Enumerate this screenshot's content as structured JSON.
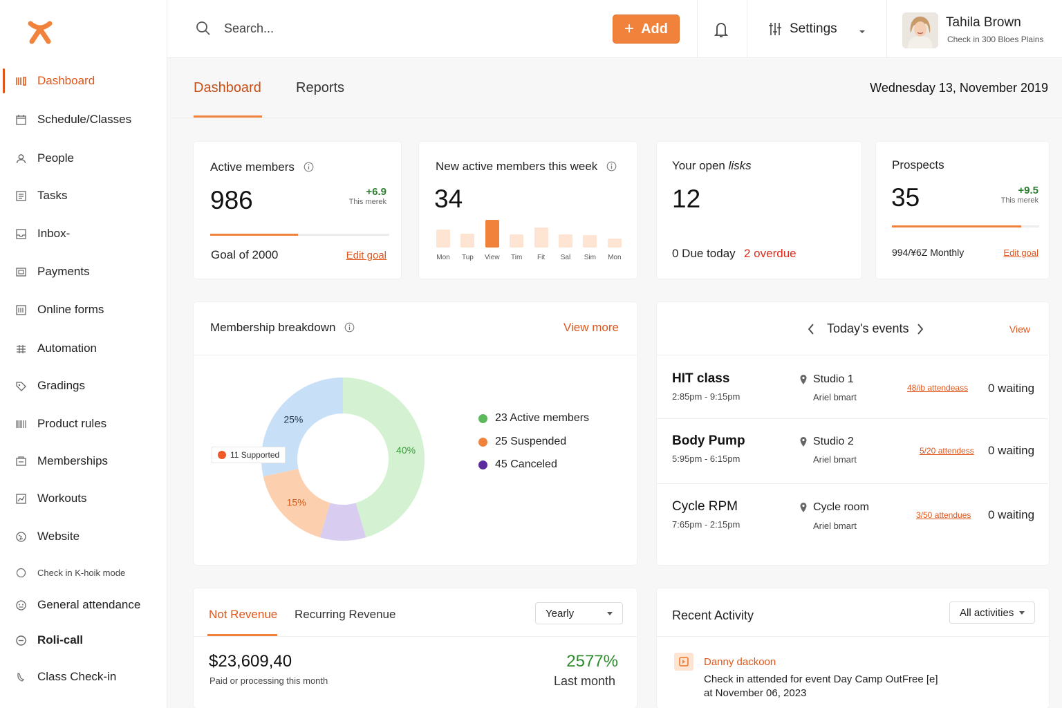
{
  "app": {
    "accent": "#f0823b"
  },
  "sidebar": {
    "items": [
      {
        "label": "Dashboard",
        "icon": "dashboard-icon"
      },
      {
        "label": "Schedule/Classes",
        "icon": "calendar-icon"
      },
      {
        "label": "People",
        "icon": "person-icon"
      },
      {
        "label": "Tasks",
        "icon": "tasks-icon"
      },
      {
        "label": "Inbox-",
        "icon": "inbox-icon"
      },
      {
        "label": "Payments",
        "icon": "payments-icon"
      },
      {
        "label": "Online forms",
        "icon": "forms-icon"
      },
      {
        "label": "Automation",
        "icon": "automation-icon"
      },
      {
        "label": "Gradings",
        "icon": "tag-icon"
      },
      {
        "label": "Product rules",
        "icon": "barcode-icon"
      },
      {
        "label": "Memberships",
        "icon": "memberships-icon"
      },
      {
        "label": "Workouts",
        "icon": "workouts-icon"
      },
      {
        "label": "Website",
        "icon": "globe-icon"
      },
      {
        "label": "Check in K-hoik mode",
        "icon": "kiosk-icon"
      },
      {
        "label": "General attendance",
        "icon": "attendance-icon"
      },
      {
        "label": "Roli-call",
        "icon": "rollcall-icon"
      },
      {
        "label": "Class Check-in",
        "icon": "checkin-icon"
      }
    ]
  },
  "header": {
    "search_placeholder": "Search...",
    "add_label": "Add",
    "settings_label": "Settings",
    "user_name": "Tahila Brown",
    "user_sub": "Check in 300 Bloes Plains"
  },
  "tabs": {
    "dashboard": "Dashboard",
    "reports": "Reports"
  },
  "date": "Wednesday 13, November 2019",
  "stats": {
    "active": {
      "title": "Active members",
      "value": "986",
      "delta": "+6.9",
      "delta_label": "This merek",
      "goal": "Goal of 2000",
      "edit": "Edit goal",
      "progress": 0.49
    },
    "new_week": {
      "title": "New active members this week",
      "value": "34",
      "days": [
        "Mon",
        "Tup",
        "View",
        "Tim",
        "Fit",
        "Sal",
        "Sim",
        "Mon"
      ],
      "levels": [
        0.62,
        0.48,
        0.95,
        0.46,
        0.7,
        0.46,
        0.44,
        0.3
      ],
      "highlight_index": 2
    },
    "tasks": {
      "title_prefix": "Your open ",
      "title_em": "lisks",
      "value": "12",
      "due": "0 Due today",
      "overdue": "2 overdue"
    },
    "prospects": {
      "title": "Prospects",
      "value": "35",
      "delta": "+9.5",
      "delta_label": "This merek",
      "monthly": "994/¥6Z Monthly",
      "edit": "Edit goal",
      "progress": 0.88
    }
  },
  "breakdown": {
    "title": "Membership breakdown",
    "view_more": "View more",
    "callout": "11 Supported",
    "segments": [
      {
        "label": "40%",
        "percent": 40,
        "color": "#d4f2d2",
        "text_color": "#3a9a3a"
      },
      {
        "label": "",
        "percent": 8,
        "color": "#d8ccf0",
        "text_color": "#555"
      },
      {
        "label": "15%",
        "percent": 15,
        "color": "#fccfae",
        "text_color": "#d35a18"
      },
      {
        "label": "25%",
        "percent": 25,
        "color": "#c7e0f8",
        "text_color": "#234"
      }
    ],
    "legend": [
      {
        "label": "23 Active members",
        "color": "#5cb85c"
      },
      {
        "label": "25 Suspended",
        "color": "#f0823b"
      },
      {
        "label": "45 Canceled",
        "color": "#5b2a9e"
      }
    ]
  },
  "events": {
    "title": "Today's events",
    "view": "View",
    "items": [
      {
        "name": "HIT class",
        "time": "2:85pm - 9:15pm",
        "location": "Studio 1",
        "instructor": "Ariel bmart",
        "attendees": "48/ib attendeass",
        "waiting": "0 waiting"
      },
      {
        "name": "Body Pump",
        "time": "5:95pm - 6:15pm",
        "location": "Studio 2",
        "instructor": "Ariel bmart",
        "attendees": "5/20 attendess",
        "waiting": "0 waiting"
      },
      {
        "name": "Cycle RPM",
        "time": "7:65pm - 2:15pm",
        "location": "Cycle room",
        "instructor": "Ariel bmart",
        "attendees": "3/50 attendues",
        "waiting": "0 waiting"
      }
    ]
  },
  "revenue": {
    "tab_net": "Not Revenue",
    "tab_recurring": "Recurring Revenue",
    "period": "Yearly",
    "amount": "$23,609,40",
    "amount_sub": "Paid or processing this month",
    "change": "2577%",
    "change_label": "Last month"
  },
  "activity": {
    "title": "Recent Activity",
    "filter": "All activities",
    "items": [
      {
        "name": "Danny dackoon",
        "text": "Check in attended for event Day Camp OutFree [e]",
        "date": "at November 06, 2023"
      }
    ]
  }
}
